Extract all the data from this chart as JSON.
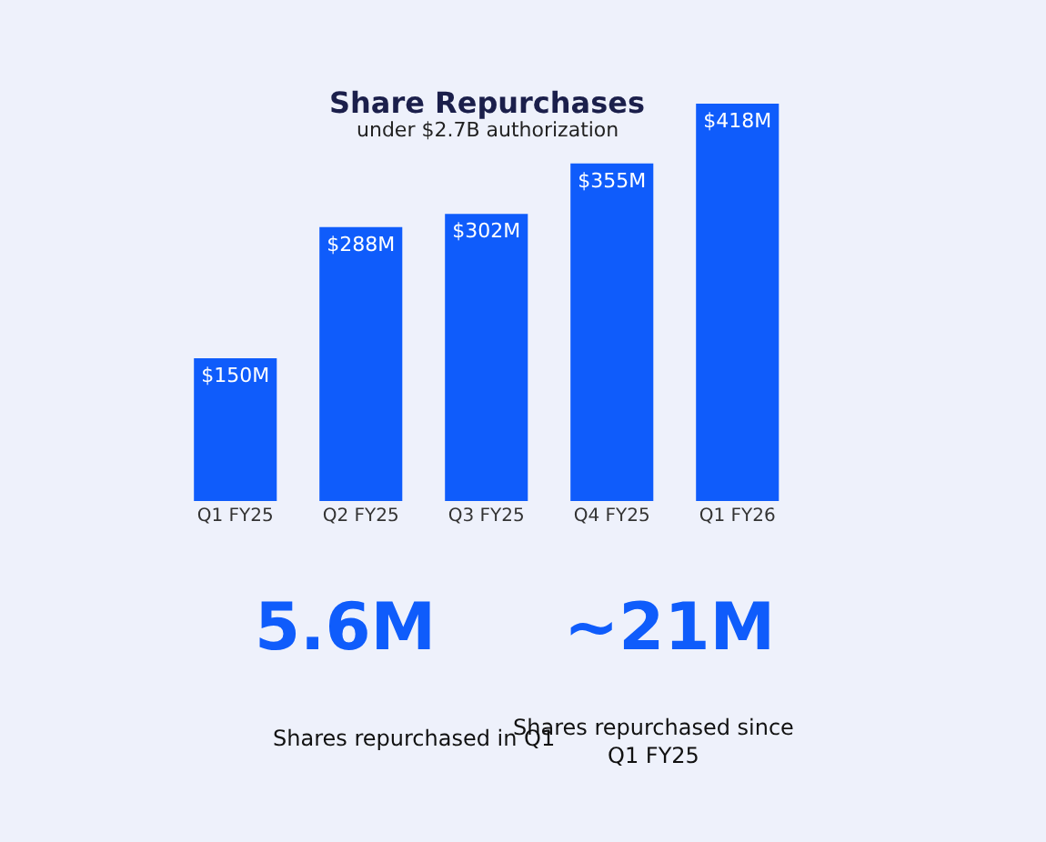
{
  "chart_data": {
    "type": "bar",
    "title": "Share Repurchases",
    "subtitle": "under $2.7B authorization",
    "categories": [
      "Q1 FY25",
      "Q2 FY25",
      "Q3 FY25",
      "Q4 FY25",
      "Q1 FY26"
    ],
    "values": [
      150,
      288,
      302,
      355,
      418
    ],
    "value_labels": [
      "$150M",
      "$288M",
      "$302M",
      "$355M",
      "$418M"
    ],
    "color": "#0f5cfb",
    "annotations": [
      "5.6M",
      "Shares repurchased in Q1",
      "~21M",
      "Shares repurchased since\nQ1 FY25"
    ],
    "grid": false,
    "legend": false
  }
}
